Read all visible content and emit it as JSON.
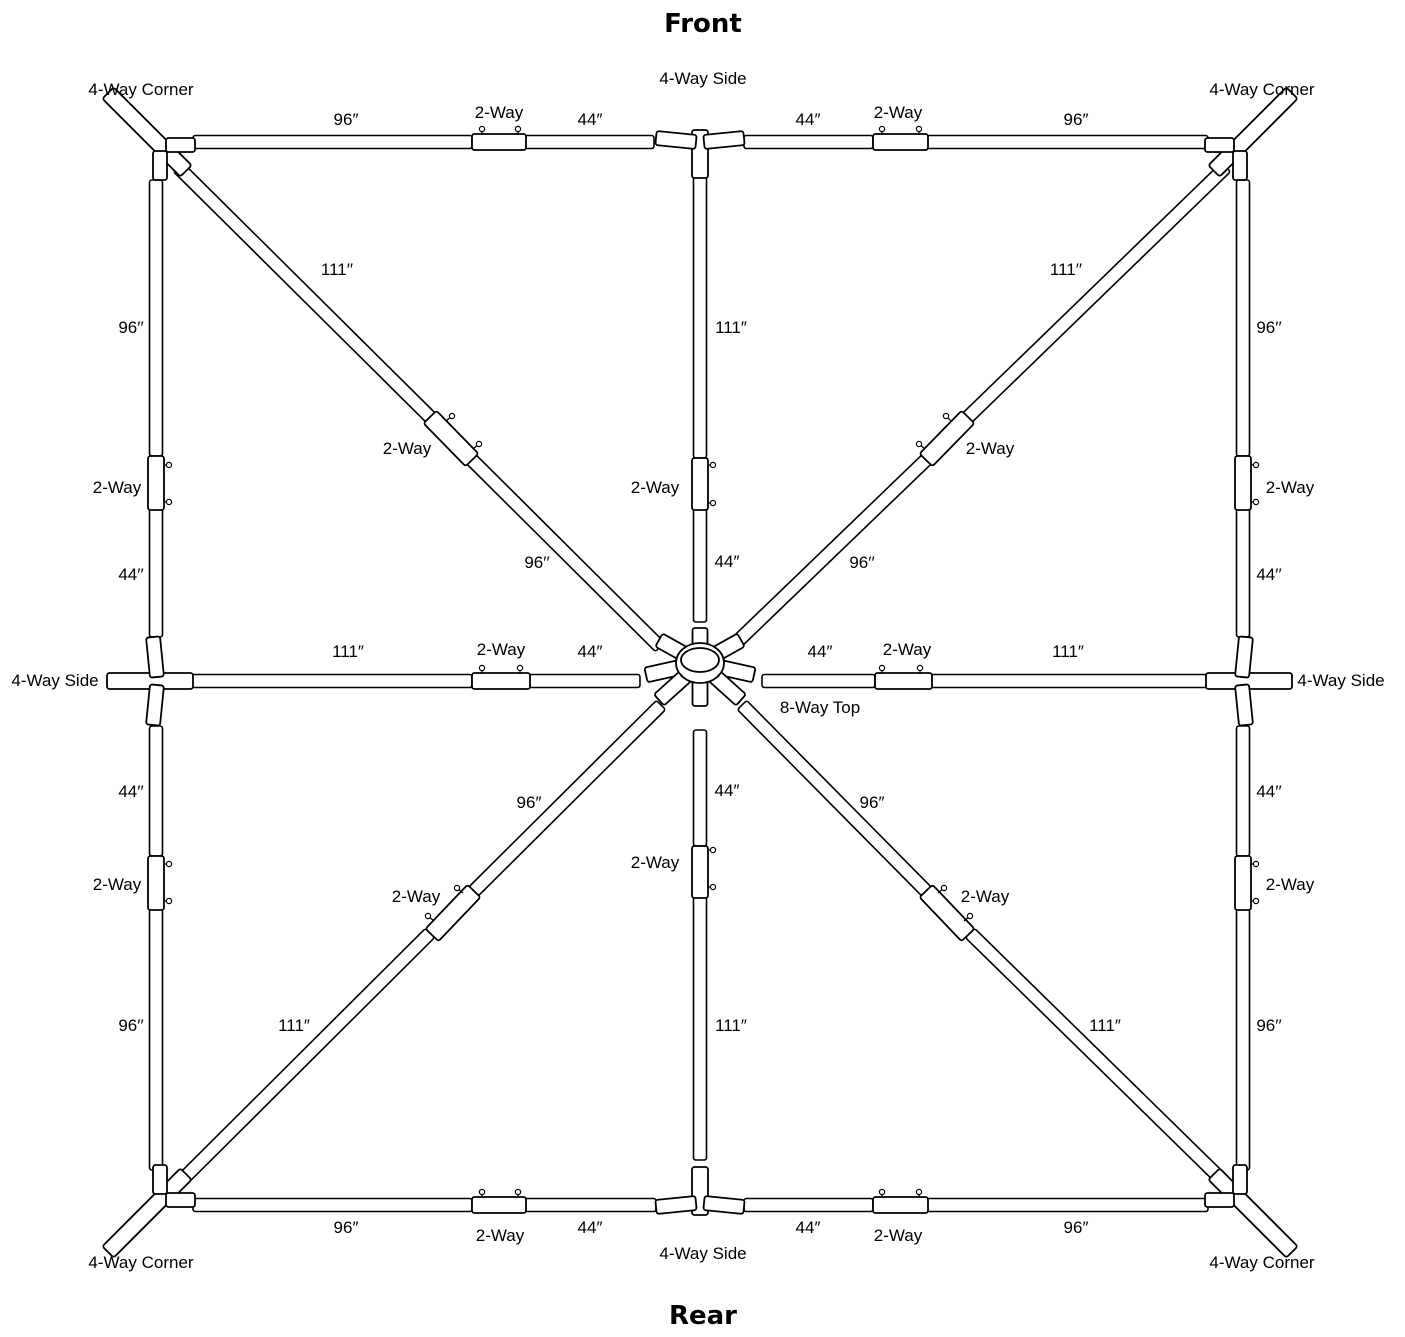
{
  "title_top": "Front",
  "title_bottom": "Rear",
  "labels": {
    "corner_tl": "4-Way Corner",
    "corner_tr": "4-Way Corner",
    "corner_bl": "4-Way Corner",
    "corner_br": "4-Way Corner",
    "side_top": "4-Way Side",
    "side_bottom": "4-Way Side",
    "side_left": "4-Way Side",
    "side_right": "4-Way Side",
    "center_top": "8-Way Top",
    "two_way": "2-Way",
    "len_96_straight": "96″",
    "len_96_tick": "96′′",
    "len_44_straight": "44″",
    "len_44_tick": "44′′",
    "len_111_straight": "111″",
    "len_111_tick": "111′′"
  }
}
